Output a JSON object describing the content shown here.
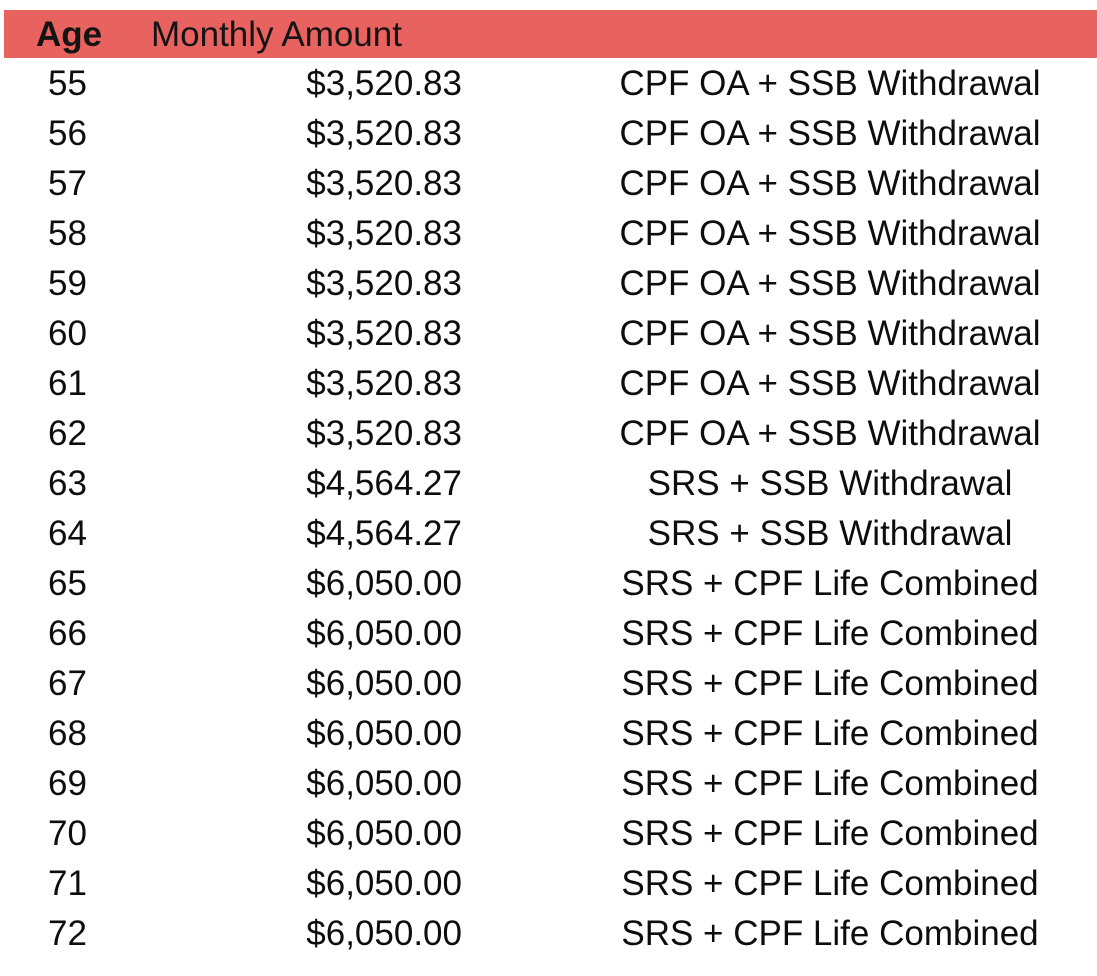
{
  "header": {
    "age": "Age",
    "amount": "Monthly Amount"
  },
  "colors": {
    "header_bg": "#e8625f",
    "text": "#0d0d0d"
  },
  "rows": [
    {
      "age": "55",
      "amount": "$3,520.83",
      "source": "CPF OA + SSB Withdrawal"
    },
    {
      "age": "56",
      "amount": "$3,520.83",
      "source": "CPF OA + SSB Withdrawal"
    },
    {
      "age": "57",
      "amount": "$3,520.83",
      "source": "CPF OA + SSB Withdrawal"
    },
    {
      "age": "58",
      "amount": "$3,520.83",
      "source": "CPF OA + SSB Withdrawal"
    },
    {
      "age": "59",
      "amount": "$3,520.83",
      "source": "CPF OA + SSB Withdrawal"
    },
    {
      "age": "60",
      "amount": "$3,520.83",
      "source": "CPF OA + SSB Withdrawal"
    },
    {
      "age": "61",
      "amount": "$3,520.83",
      "source": "CPF OA + SSB Withdrawal"
    },
    {
      "age": "62",
      "amount": "$3,520.83",
      "source": "CPF OA + SSB Withdrawal"
    },
    {
      "age": "63",
      "amount": "$4,564.27",
      "source": "SRS + SSB Withdrawal"
    },
    {
      "age": "64",
      "amount": "$4,564.27",
      "source": "SRS + SSB Withdrawal"
    },
    {
      "age": "65",
      "amount": "$6,050.00",
      "source": "SRS + CPF Life Combined"
    },
    {
      "age": "66",
      "amount": "$6,050.00",
      "source": "SRS + CPF Life Combined"
    },
    {
      "age": "67",
      "amount": "$6,050.00",
      "source": "SRS + CPF Life Combined"
    },
    {
      "age": "68",
      "amount": "$6,050.00",
      "source": "SRS + CPF Life Combined"
    },
    {
      "age": "69",
      "amount": "$6,050.00",
      "source": "SRS + CPF Life Combined"
    },
    {
      "age": "70",
      "amount": "$6,050.00",
      "source": "SRS + CPF Life Combined"
    },
    {
      "age": "71",
      "amount": "$6,050.00",
      "source": "SRS + CPF Life Combined"
    },
    {
      "age": "72",
      "amount": "$6,050.00",
      "source": "SRS + CPF Life Combined"
    }
  ]
}
